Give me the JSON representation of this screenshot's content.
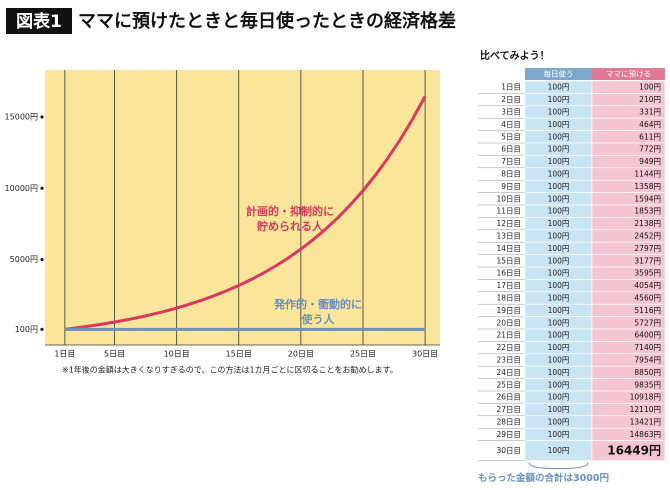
{
  "header": {
    "badge": "図表1",
    "title": "ママに預けたときと毎日使ったときの経済格差"
  },
  "chart_data": {
    "type": "line",
    "x": [
      1,
      2,
      3,
      4,
      5,
      6,
      7,
      8,
      9,
      10,
      11,
      12,
      13,
      14,
      15,
      16,
      17,
      18,
      19,
      20,
      21,
      22,
      23,
      24,
      25,
      26,
      27,
      28,
      29,
      30
    ],
    "series": [
      {
        "label_lines": [
          "計画的・抑制的に",
          "貯められる人"
        ],
        "color": "#d8395c",
        "values": [
          100,
          210,
          331,
          464,
          611,
          772,
          949,
          1144,
          1358,
          1594,
          1853,
          2138,
          2452,
          2797,
          3177,
          3595,
          4054,
          4560,
          5116,
          5727,
          6400,
          7140,
          7954,
          8850,
          9835,
          10918,
          12110,
          13421,
          14863,
          16449
        ]
      },
      {
        "label_lines": [
          "発作的・衝動的に",
          "使う人"
        ],
        "color": "#6b8fbe",
        "values": [
          100,
          100,
          100,
          100,
          100,
          100,
          100,
          100,
          100,
          100,
          100,
          100,
          100,
          100,
          100,
          100,
          100,
          100,
          100,
          100,
          100,
          100,
          100,
          100,
          100,
          100,
          100,
          100,
          100,
          100
        ]
      }
    ],
    "xlim": [
      -0.6,
      31.2
    ],
    "xticks": [
      {
        "value": 1,
        "label": "1日目"
      },
      {
        "value": 5,
        "label": "5日目"
      },
      {
        "value": 10,
        "label": "10日目"
      },
      {
        "value": 15,
        "label": "15日目"
      },
      {
        "value": 20,
        "label": "20日目"
      },
      {
        "value": 25,
        "label": "25日目"
      },
      {
        "value": 30,
        "label": "30日目"
      }
    ],
    "ylim": [
      -1000,
      18300
    ],
    "yticks": [
      {
        "value": 100,
        "label": "100円"
      },
      {
        "value": 5000,
        "label": "5000円"
      },
      {
        "value": 10000,
        "label": "10000円"
      },
      {
        "value": 15000,
        "label": "15000円"
      }
    ],
    "grid": true,
    "footnote": "※1年後の金額は大きくなりすぎるので、この方法は1カ月ごとに区切ることをお勧めします。"
  },
  "table": {
    "title": "比べてみよう！",
    "columns": [
      "毎日使う",
      "ママに預ける"
    ],
    "rows": [
      [
        "1日目",
        "100円",
        "100円"
      ],
      [
        "2日目",
        "100円",
        "210円"
      ],
      [
        "3日目",
        "100円",
        "331円"
      ],
      [
        "4日目",
        "100円",
        "464円"
      ],
      [
        "5日目",
        "100円",
        "611円"
      ],
      [
        "6日目",
        "100円",
        "772円"
      ],
      [
        "7日目",
        "100円",
        "949円"
      ],
      [
        "8日目",
        "100円",
        "1144円"
      ],
      [
        "9日目",
        "100円",
        "1358円"
      ],
      [
        "10日目",
        "100円",
        "1594円"
      ],
      [
        "11日目",
        "100円",
        "1853円"
      ],
      [
        "12日目",
        "100円",
        "2138円"
      ],
      [
        "13日目",
        "100円",
        "2452円"
      ],
      [
        "14日目",
        "100円",
        "2797円"
      ],
      [
        "15日目",
        "100円",
        "3177円"
      ],
      [
        "16日目",
        "100円",
        "3595円"
      ],
      [
        "17日目",
        "100円",
        "4054円"
      ],
      [
        "18日目",
        "100円",
        "4560円"
      ],
      [
        "19日目",
        "100円",
        "5116円"
      ],
      [
        "20日目",
        "100円",
        "5727円"
      ],
      [
        "21日目",
        "100円",
        "6400円"
      ],
      [
        "22日目",
        "100円",
        "7140円"
      ],
      [
        "23日目",
        "100円",
        "7954円"
      ],
      [
        "24日目",
        "100円",
        "8850円"
      ],
      [
        "25日目",
        "100円",
        "9835円"
      ],
      [
        "26日目",
        "100円",
        "10918円"
      ],
      [
        "27日目",
        "100円",
        "12110円"
      ],
      [
        "28日目",
        "100円",
        "13421円"
      ],
      [
        "29日目",
        "100円",
        "14863円"
      ],
      [
        "30日目",
        "100円",
        "16449円"
      ]
    ],
    "footer": "もらった金額の合計は3000円"
  }
}
